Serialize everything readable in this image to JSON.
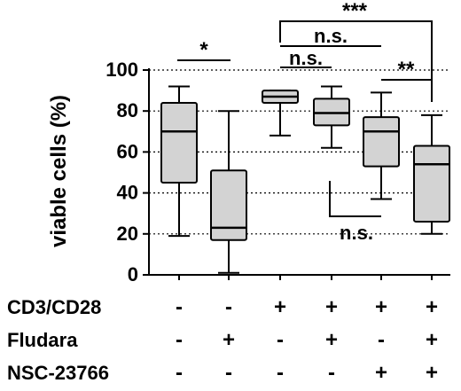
{
  "chart_data": {
    "type": "box",
    "ylabel": "viable cells (%)",
    "ylim": [
      0,
      100
    ],
    "yticks": [
      "0",
      "20",
      "40",
      "60",
      "80",
      "100"
    ],
    "ytick_values": [
      0,
      20,
      40,
      60,
      80,
      100
    ],
    "grid": "dashed horizontal lines at 20, 40, 60, 80, 100",
    "box_fill": "#d3d3d3",
    "boxes": [
      {
        "min": 19,
        "q1": 45,
        "median": 70,
        "q3": 84,
        "max": 92
      },
      {
        "min": 1,
        "q1": 17,
        "median": 23,
        "q3": 51,
        "max": 80
      },
      {
        "min": 68,
        "q1": 84,
        "median": 87,
        "q3": 90,
        "max": 90
      },
      {
        "min": 62,
        "q1": 73,
        "median": 79,
        "q3": 86,
        "max": 92
      },
      {
        "min": 37,
        "q1": 53,
        "median": 70,
        "q3": 77,
        "max": 89
      },
      {
        "min": 20,
        "q1": 26,
        "median": 54,
        "q3": 63,
        "max": 78
      }
    ],
    "conditions": [
      {
        "label": "CD3/CD28",
        "values": [
          "-",
          "-",
          "+",
          "+",
          "+",
          "+"
        ]
      },
      {
        "label": "Fludara",
        "values": [
          "-",
          "+",
          "-",
          "+",
          "-",
          "+"
        ]
      },
      {
        "label": "NSC-23766",
        "values": [
          "-",
          "-",
          "-",
          "-",
          "+",
          "+"
        ]
      }
    ],
    "significance": [
      {
        "from": 1,
        "to": 2,
        "label": "*"
      },
      {
        "from": 3,
        "to": 4,
        "label": "n.s."
      },
      {
        "from": 3,
        "to": 5,
        "label": "n.s."
      },
      {
        "from": 3,
        "to": 6,
        "label": "***"
      },
      {
        "from": 5,
        "to": 6,
        "label": "**"
      },
      {
        "from": 4,
        "to": 5,
        "label": "n.s."
      }
    ]
  }
}
